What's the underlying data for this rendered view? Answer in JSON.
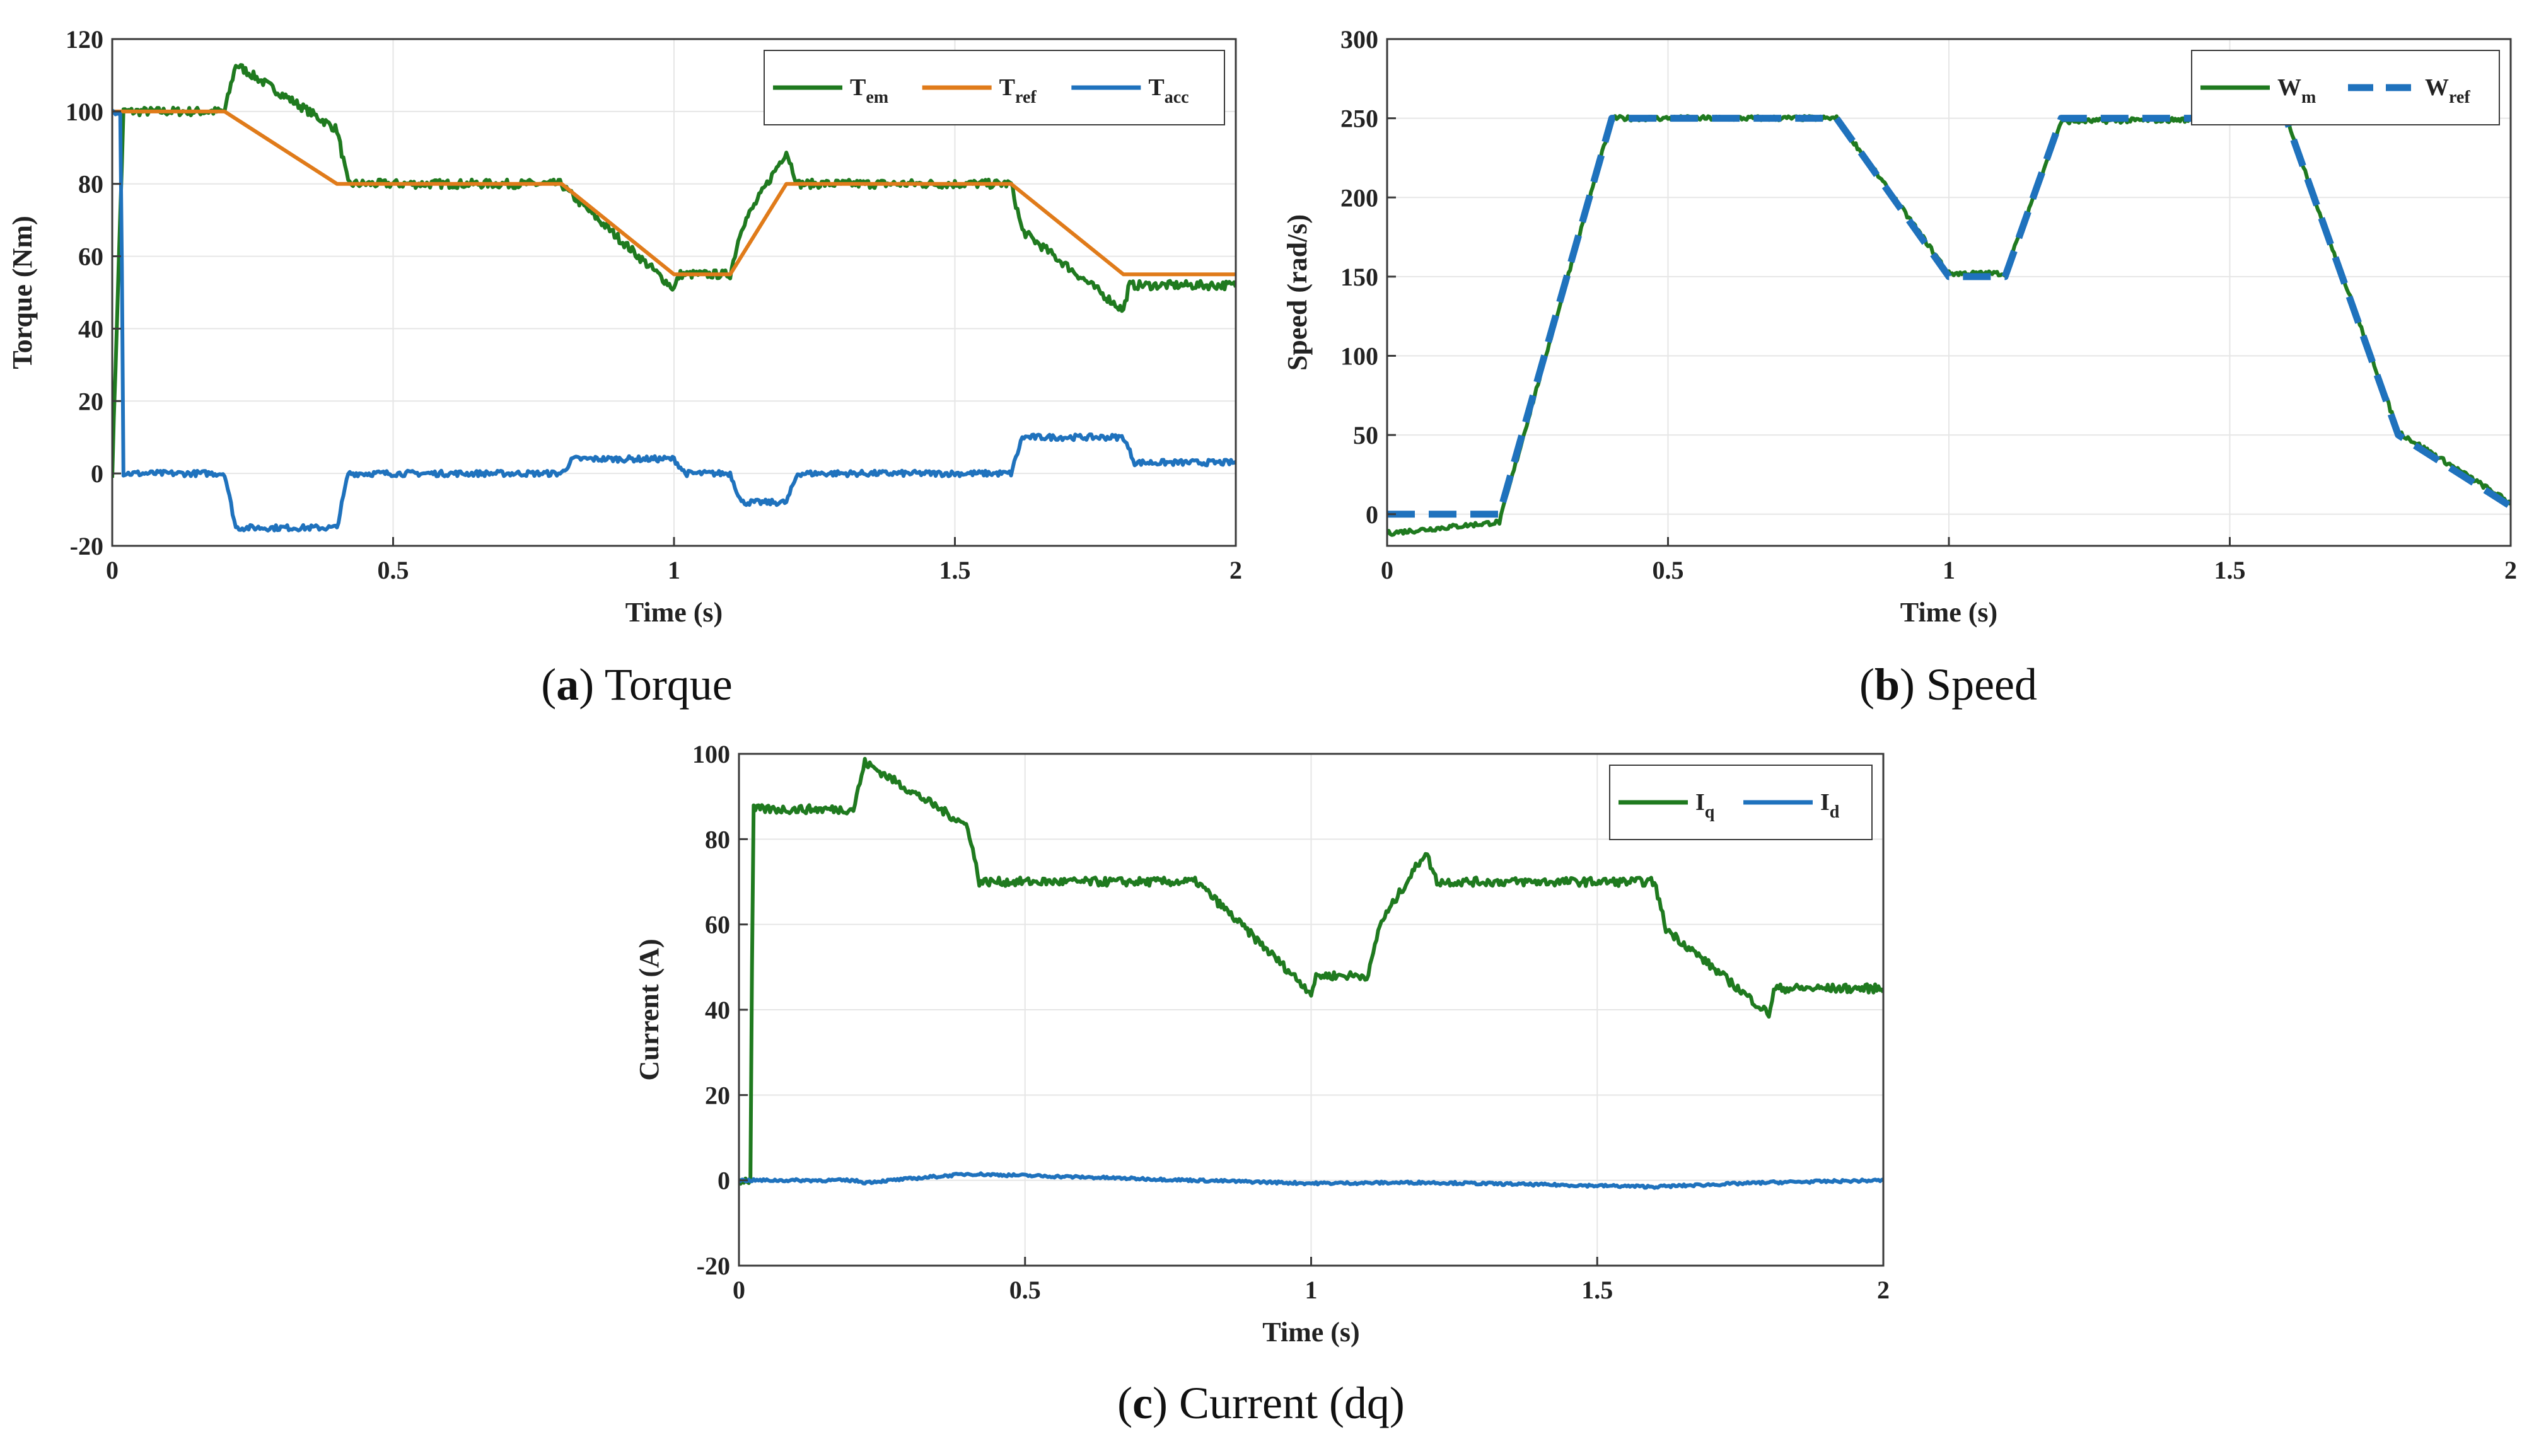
{
  "colors": {
    "green": "#1f7a1f",
    "orange": "#e07b1a",
    "blue": "#1f72bd"
  },
  "chart_data": [
    {
      "id": "a",
      "type": "line",
      "caption_letter": "a",
      "caption_text": " Torque",
      "xlabel": "Time (s)",
      "ylabel": "Torque (Nm)",
      "xlim": [
        0,
        2
      ],
      "ylim": [
        -20,
        120
      ],
      "xticks": [
        0,
        0.5,
        1,
        1.5,
        2
      ],
      "xtick_labels": [
        "0",
        "0.5",
        "1",
        "1.5",
        "2"
      ],
      "yticks": [
        -20,
        0,
        20,
        40,
        60,
        80,
        100,
        120
      ],
      "ytick_labels": [
        "-20",
        "0",
        "20",
        "40",
        "60",
        "80",
        "100",
        "120"
      ],
      "legend_position": "top-right",
      "series": [
        {
          "key": "tem",
          "label_main": "T",
          "label_sub": "em",
          "color": "green",
          "dash": false,
          "noise": 1.2,
          "x": [
            0,
            0.02,
            0.2,
            0.22,
            0.4,
            0.42,
            0.8,
            0.81,
            1.0,
            1.01,
            1.1,
            1.12,
            1.2,
            1.22,
            1.6,
            1.62,
            1.8,
            1.81,
            2.0
          ],
          "y": [
            0,
            100,
            100,
            113,
            95,
            80,
            80,
            78,
            51,
            55,
            55,
            68,
            89,
            80,
            80,
            67,
            45,
            52,
            52
          ]
        },
        {
          "key": "tref",
          "label_main": "T",
          "label_sub": "ref",
          "color": "orange",
          "dash": false,
          "noise": 0,
          "x": [
            0,
            0.01,
            0.2,
            0.4,
            0.8,
            1.0,
            1.1,
            1.2,
            1.6,
            1.8,
            2.0
          ],
          "y": [
            100,
            100,
            100,
            80,
            80,
            55,
            55,
            80,
            80,
            55,
            55
          ]
        },
        {
          "key": "tacc",
          "label_main": "T",
          "label_sub": "acc",
          "color": "blue",
          "dash": false,
          "noise": 0.8,
          "x": [
            0,
            0.015,
            0.02,
            0.03,
            0.2,
            0.22,
            0.4,
            0.42,
            0.8,
            0.82,
            1.0,
            1.02,
            1.1,
            1.12,
            1.2,
            1.22,
            1.6,
            1.62,
            1.8,
            1.82,
            2.0
          ],
          "y": [
            100,
            100,
            0,
            0,
            0,
            -15,
            -15,
            0,
            0,
            4,
            4,
            0,
            0,
            -8,
            -8,
            0,
            0,
            10,
            10,
            3,
            3
          ]
        }
      ]
    },
    {
      "id": "b",
      "type": "line",
      "caption_letter": "b",
      "caption_text": " Speed",
      "xlabel": "Time (s)",
      "ylabel": "Speed (rad/s)",
      "xlim": [
        0,
        2
      ],
      "ylim": [
        -20,
        300
      ],
      "xticks": [
        0,
        0.5,
        1,
        1.5,
        2
      ],
      "xtick_labels": [
        "0",
        "0.5",
        "1",
        "1.5",
        "2"
      ],
      "yticks": [
        0,
        50,
        100,
        150,
        200,
        250,
        300
      ],
      "ytick_labels": [
        "0",
        "50",
        "100",
        "150",
        "200",
        "250",
        "300"
      ],
      "legend_position": "top-right",
      "series": [
        {
          "key": "wm",
          "label_main": "W",
          "label_sub": "m",
          "color": "green",
          "dash": false,
          "noise": 1.5,
          "x": [
            0,
            0.2,
            0.4,
            0.8,
            1.0,
            1.1,
            1.2,
            1.6,
            1.8,
            2.0
          ],
          "y": [
            -12,
            -5,
            250,
            250,
            152,
            152,
            248,
            250,
            52,
            7
          ]
        },
        {
          "key": "wref",
          "label_main": "W",
          "label_sub": "ref",
          "color": "blue",
          "dash": true,
          "noise": 0,
          "x": [
            0,
            0.2,
            0.4,
            0.8,
            1.0,
            1.1,
            1.2,
            1.6,
            1.8,
            2.0
          ],
          "y": [
            0,
            0,
            250,
            250,
            150,
            150,
            250,
            250,
            50,
            5
          ]
        }
      ]
    },
    {
      "id": "c",
      "type": "line",
      "caption_letter": "c",
      "caption_text": " Current (dq)",
      "xlabel": "Time (s)",
      "ylabel": "Current (A)",
      "xlim": [
        0,
        2
      ],
      "ylim": [
        -20,
        100
      ],
      "xticks": [
        0,
        0.5,
        1,
        1.5,
        2
      ],
      "xtick_labels": [
        "0",
        "0.5",
        "1",
        "1.5",
        "2"
      ],
      "yticks": [
        -20,
        0,
        20,
        40,
        60,
        80,
        100
      ],
      "ytick_labels": [
        "-20",
        "0",
        "20",
        "40",
        "60",
        "80",
        "100"
      ],
      "legend_position": "top-right",
      "series": [
        {
          "key": "iq",
          "label_main": "I",
          "label_sub": "q",
          "color": "green",
          "dash": false,
          "noise": 1.0,
          "x": [
            0,
            0.02,
            0.025,
            0.2,
            0.22,
            0.4,
            0.42,
            0.8,
            1.0,
            1.01,
            1.1,
            1.12,
            1.2,
            1.22,
            1.6,
            1.62,
            1.8,
            1.81,
            2.0
          ],
          "y": [
            0,
            0,
            87,
            87,
            98,
            83,
            70,
            70,
            44,
            48,
            48,
            60,
            77,
            70,
            70,
            59,
            39,
            45,
            45
          ]
        },
        {
          "key": "id",
          "label_main": "I",
          "label_sub": "d",
          "color": "blue",
          "dash": false,
          "noise": 0.3,
          "x": [
            0,
            0.2,
            0.22,
            0.4,
            0.8,
            1.0,
            1.2,
            1.6,
            1.8,
            2.0
          ],
          "y": [
            0,
            0,
            -0.5,
            1.5,
            0,
            -0.7,
            -0.5,
            -1.5,
            -0.5,
            0
          ]
        }
      ]
    }
  ]
}
